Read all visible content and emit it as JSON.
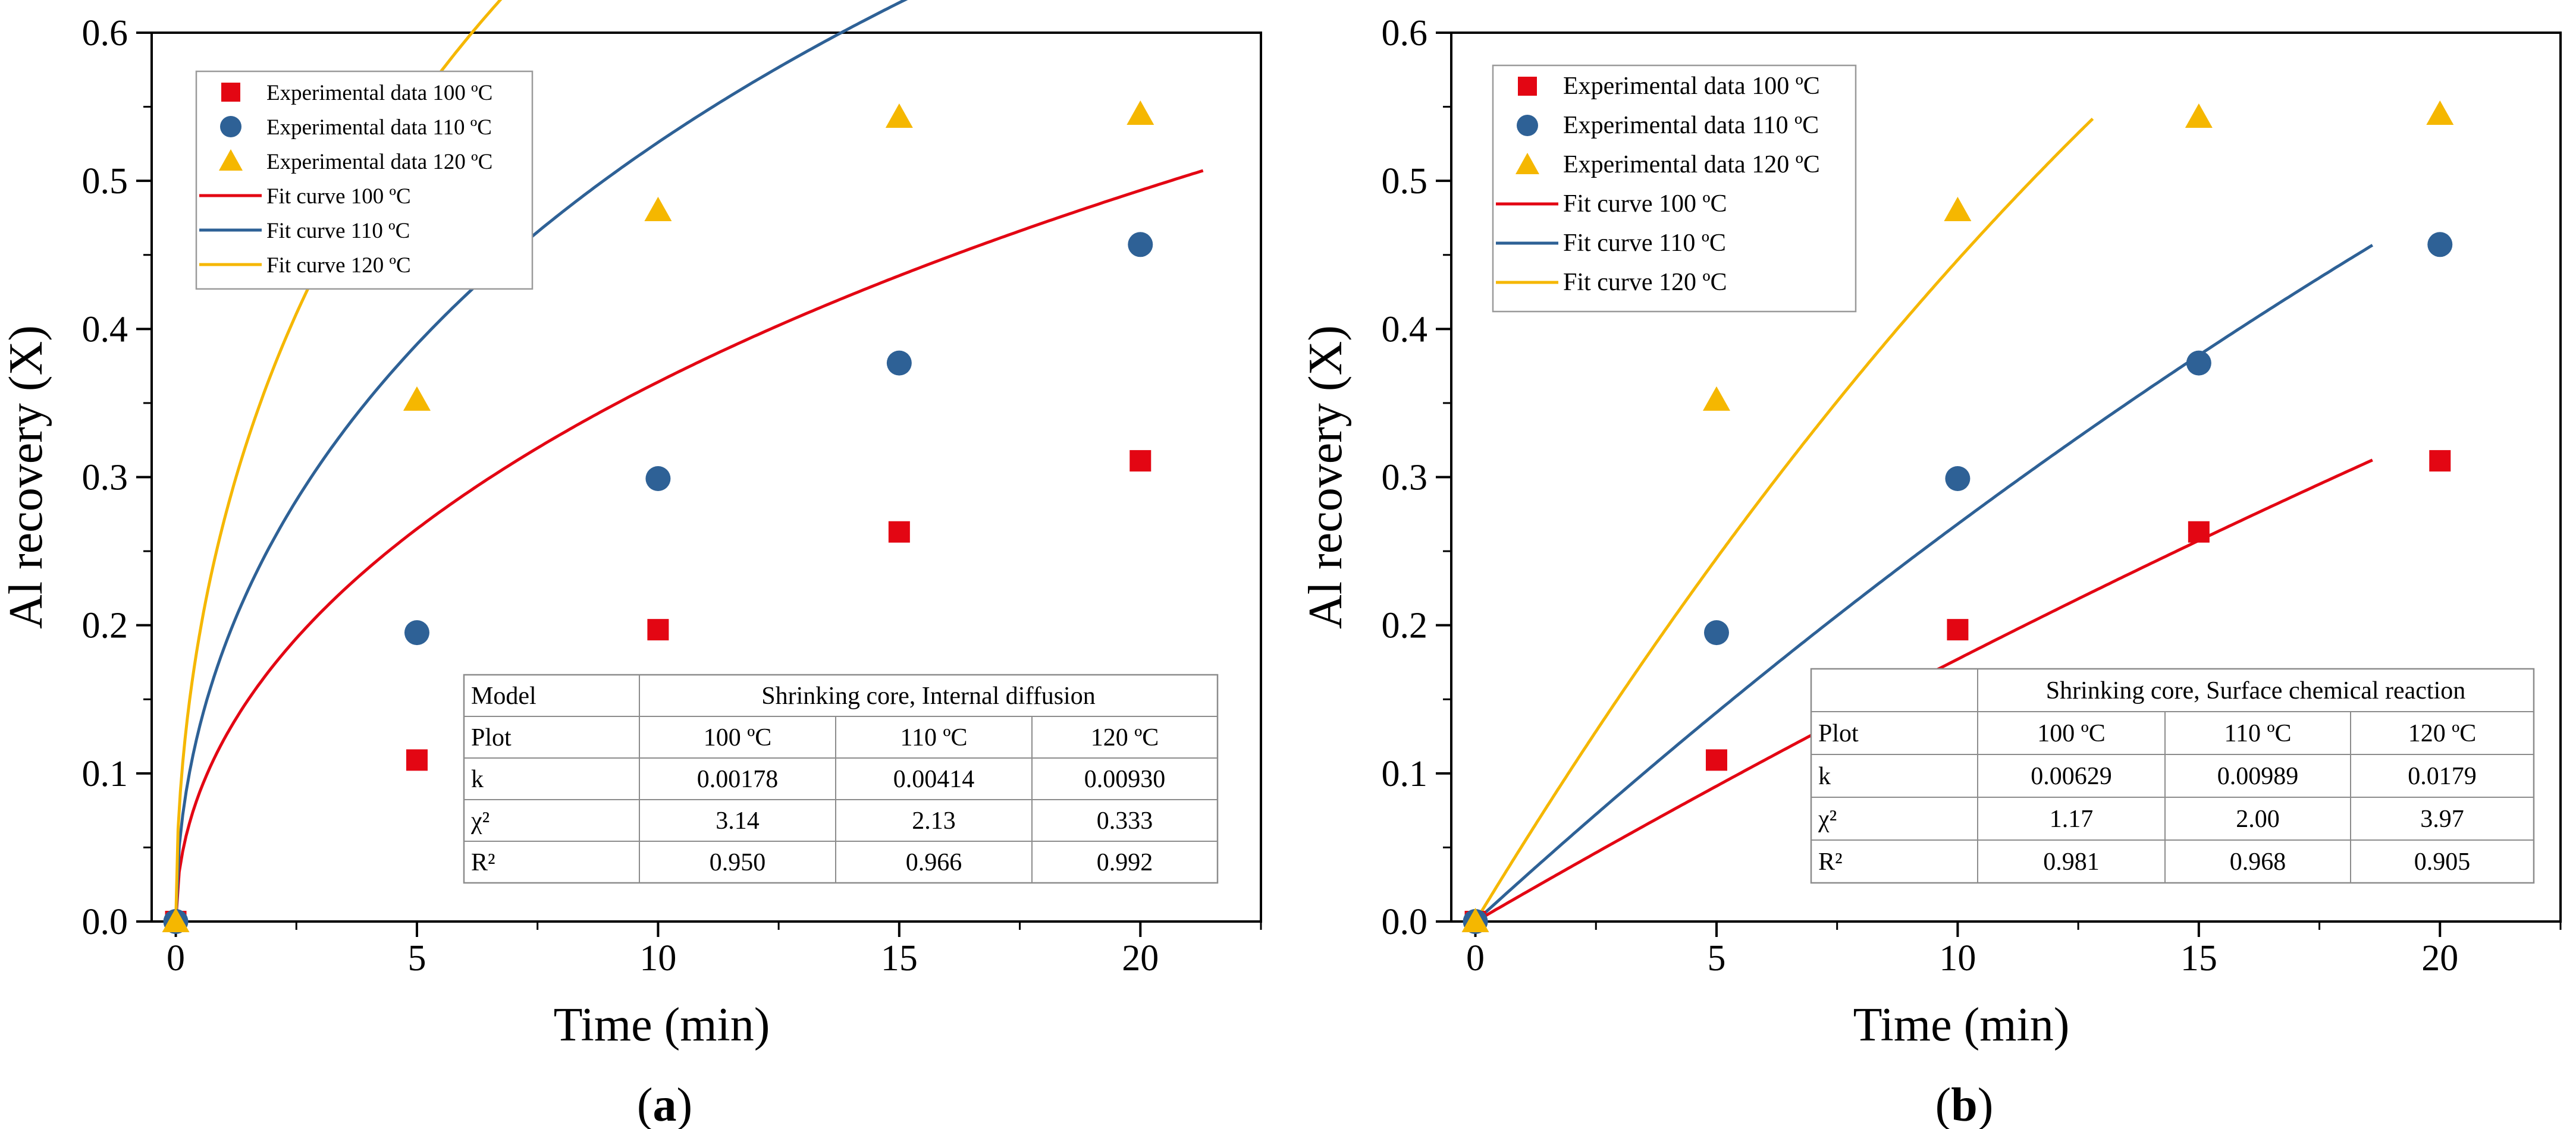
{
  "colors": {
    "c100": "#e30613",
    "c110": "#2e6196",
    "c120": "#f5b700",
    "axis": "#000000",
    "tableLine": "#8c8c8c"
  },
  "chart_data": [
    {
      "type": "scatter",
      "panel_label": "a",
      "xlabel": "Time (min)",
      "ylabel": "Al recovery (X)",
      "xlim": [
        -0.5,
        22.5
      ],
      "ylim": [
        0,
        0.6
      ],
      "xticks": [
        0,
        5,
        10,
        15,
        20
      ],
      "yticks": [
        0.0,
        0.1,
        0.2,
        0.3,
        0.4,
        0.5,
        0.6
      ],
      "tick_labels_x": [
        "0",
        "5",
        "10",
        "15",
        "20"
      ],
      "tick_labels_y": [
        "0.0",
        "0.1",
        "0.2",
        "0.3",
        "0.4",
        "0.5",
        "0.6"
      ],
      "legend_position": "top-left",
      "series": [
        {
          "name": "Experimental data 100 ºC",
          "kind": "points",
          "marker": "square",
          "color": "#e30613",
          "x": [
            0,
            5,
            10,
            15,
            20
          ],
          "y": [
            0,
            0.109,
            0.197,
            0.263,
            0.311
          ]
        },
        {
          "name": "Experimental data 110 ºC",
          "kind": "points",
          "marker": "circle",
          "color": "#2e6196",
          "x": [
            0,
            5,
            10,
            15,
            20
          ],
          "y": [
            0,
            0.195,
            0.299,
            0.377,
            0.457
          ]
        },
        {
          "name": "Experimental data 120 ºC",
          "kind": "points",
          "marker": "triangle",
          "color": "#f5b700",
          "x": [
            0,
            5,
            10,
            15,
            20
          ],
          "y": [
            0,
            0.352,
            0.48,
            0.543,
            0.545
          ]
        },
        {
          "name": "Fit curve 100 ºC",
          "kind": "curve",
          "model": "diffusion",
          "k": 0.00178,
          "t_max": 21.3,
          "color": "#e30613"
        },
        {
          "name": "Fit curve 110 ºC",
          "kind": "curve",
          "model": "diffusion",
          "k": 0.00414,
          "t_max": 21.5,
          "color": "#2e6196"
        },
        {
          "name": "Fit curve 120 ºC",
          "kind": "curve",
          "model": "diffusion",
          "k": 0.0093,
          "t_max": 14.4,
          "color": "#f5b700"
        }
      ],
      "table": {
        "header": [
          "Model",
          "Shrinking core, Internal diffusion"
        ],
        "rows": [
          [
            "Plot",
            "100 ºC",
            "110 ºC",
            "120 ºC"
          ],
          [
            "k",
            "0.00178",
            "0.00414",
            "0.00930"
          ],
          [
            "χ²",
            "3.14",
            "2.13",
            "0.333"
          ],
          [
            "R²",
            "0.950",
            "0.966",
            "0.992"
          ]
        ]
      }
    },
    {
      "type": "scatter",
      "panel_label": "b",
      "xlabel": "Time (min)",
      "ylabel": "Al recovery (X)",
      "xlim": [
        -0.5,
        22.5
      ],
      "ylim": [
        0,
        0.6
      ],
      "xticks": [
        0,
        5,
        10,
        15,
        20
      ],
      "yticks": [
        0.0,
        0.1,
        0.2,
        0.3,
        0.4,
        0.5,
        0.6
      ],
      "tick_labels_x": [
        "0",
        "5",
        "10",
        "15",
        "20"
      ],
      "tick_labels_y": [
        "0.0",
        "0.1",
        "0.2",
        "0.3",
        "0.4",
        "0.5",
        "0.6"
      ],
      "legend_position": "top-left",
      "series": [
        {
          "name": "Experimental data 100 ºC",
          "kind": "points",
          "marker": "square",
          "color": "#e30613",
          "x": [
            0,
            5,
            10,
            15,
            20
          ],
          "y": [
            0,
            0.109,
            0.197,
            0.263,
            0.311
          ]
        },
        {
          "name": "Experimental data 110 ºC",
          "kind": "points",
          "marker": "circle",
          "color": "#2e6196",
          "x": [
            0,
            5,
            10,
            15,
            20
          ],
          "y": [
            0,
            0.195,
            0.299,
            0.377,
            0.457
          ]
        },
        {
          "name": "Experimental data 120 ºC",
          "kind": "points",
          "marker": "triangle",
          "color": "#f5b700",
          "x": [
            0,
            5,
            10,
            15,
            20
          ],
          "y": [
            0,
            0.352,
            0.48,
            0.543,
            0.545
          ]
        },
        {
          "name": "Fit curve 100 ºC",
          "kind": "curve",
          "model": "reaction",
          "k": 0.00629,
          "t_max": 18.6,
          "color": "#e30613"
        },
        {
          "name": "Fit curve 110 ºC",
          "kind": "curve",
          "model": "reaction",
          "k": 0.00989,
          "t_max": 18.6,
          "color": "#2e6196"
        },
        {
          "name": "Fit curve 120 ºC",
          "kind": "curve",
          "model": "reaction",
          "k": 0.0179,
          "t_max": 12.8,
          "color": "#f5b700"
        }
      ],
      "table": {
        "header": [
          "",
          "Shrinking core, Surface chemical reaction"
        ],
        "rows": [
          [
            "Plot",
            "100 ºC",
            "110 ºC",
            "120 ºC"
          ],
          [
            "k",
            "0.00629",
            "0.00989",
            "0.0179"
          ],
          [
            "χ²",
            "1.17",
            "2.00",
            "3.97"
          ],
          [
            "R²",
            "0.981",
            "0.968",
            "0.905"
          ]
        ]
      }
    }
  ]
}
